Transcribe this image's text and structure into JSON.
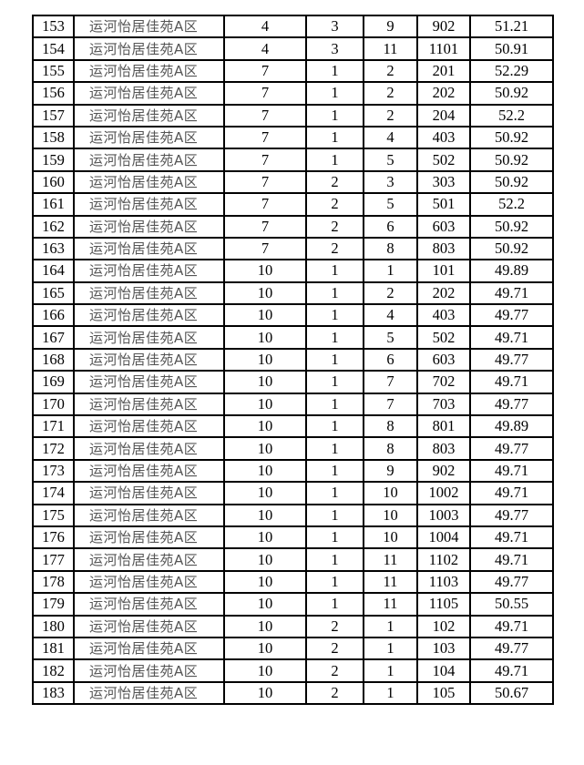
{
  "table": {
    "rows": [
      [
        "153",
        "运河怡居佳苑A区",
        "4",
        "3",
        "9",
        "902",
        "51.21"
      ],
      [
        "154",
        "运河怡居佳苑A区",
        "4",
        "3",
        "11",
        "1101",
        "50.91"
      ],
      [
        "155",
        "运河怡居佳苑A区",
        "7",
        "1",
        "2",
        "201",
        "52.29"
      ],
      [
        "156",
        "运河怡居佳苑A区",
        "7",
        "1",
        "2",
        "202",
        "50.92"
      ],
      [
        "157",
        "运河怡居佳苑A区",
        "7",
        "1",
        "2",
        "204",
        "52.2"
      ],
      [
        "158",
        "运河怡居佳苑A区",
        "7",
        "1",
        "4",
        "403",
        "50.92"
      ],
      [
        "159",
        "运河怡居佳苑A区",
        "7",
        "1",
        "5",
        "502",
        "50.92"
      ],
      [
        "160",
        "运河怡居佳苑A区",
        "7",
        "2",
        "3",
        "303",
        "50.92"
      ],
      [
        "161",
        "运河怡居佳苑A区",
        "7",
        "2",
        "5",
        "501",
        "52.2"
      ],
      [
        "162",
        "运河怡居佳苑A区",
        "7",
        "2",
        "6",
        "603",
        "50.92"
      ],
      [
        "163",
        "运河怡居佳苑A区",
        "7",
        "2",
        "8",
        "803",
        "50.92"
      ],
      [
        "164",
        "运河怡居佳苑A区",
        "10",
        "1",
        "1",
        "101",
        "49.89"
      ],
      [
        "165",
        "运河怡居佳苑A区",
        "10",
        "1",
        "2",
        "202",
        "49.71"
      ],
      [
        "166",
        "运河怡居佳苑A区",
        "10",
        "1",
        "4",
        "403",
        "49.77"
      ],
      [
        "167",
        "运河怡居佳苑A区",
        "10",
        "1",
        "5",
        "502",
        "49.71"
      ],
      [
        "168",
        "运河怡居佳苑A区",
        "10",
        "1",
        "6",
        "603",
        "49.77"
      ],
      [
        "169",
        "运河怡居佳苑A区",
        "10",
        "1",
        "7",
        "702",
        "49.71"
      ],
      [
        "170",
        "运河怡居佳苑A区",
        "10",
        "1",
        "7",
        "703",
        "49.77"
      ],
      [
        "171",
        "运河怡居佳苑A区",
        "10",
        "1",
        "8",
        "801",
        "49.89"
      ],
      [
        "172",
        "运河怡居佳苑A区",
        "10",
        "1",
        "8",
        "803",
        "49.77"
      ],
      [
        "173",
        "运河怡居佳苑A区",
        "10",
        "1",
        "9",
        "902",
        "49.71"
      ],
      [
        "174",
        "运河怡居佳苑A区",
        "10",
        "1",
        "10",
        "1002",
        "49.71"
      ],
      [
        "175",
        "运河怡居佳苑A区",
        "10",
        "1",
        "10",
        "1003",
        "49.77"
      ],
      [
        "176",
        "运河怡居佳苑A区",
        "10",
        "1",
        "10",
        "1004",
        "49.71"
      ],
      [
        "177",
        "运河怡居佳苑A区",
        "10",
        "1",
        "11",
        "1102",
        "49.71"
      ],
      [
        "178",
        "运河怡居佳苑A区",
        "10",
        "1",
        "11",
        "1103",
        "49.77"
      ],
      [
        "179",
        "运河怡居佳苑A区",
        "10",
        "1",
        "11",
        "1105",
        "50.55"
      ],
      [
        "180",
        "运河怡居佳苑A区",
        "10",
        "2",
        "1",
        "102",
        "49.71"
      ],
      [
        "181",
        "运河怡居佳苑A区",
        "10",
        "2",
        "1",
        "103",
        "49.77"
      ],
      [
        "182",
        "运河怡居佳苑A区",
        "10",
        "2",
        "1",
        "104",
        "49.71"
      ],
      [
        "183",
        "运河怡居佳苑A区",
        "10",
        "2",
        "1",
        "105",
        "50.67"
      ]
    ]
  }
}
